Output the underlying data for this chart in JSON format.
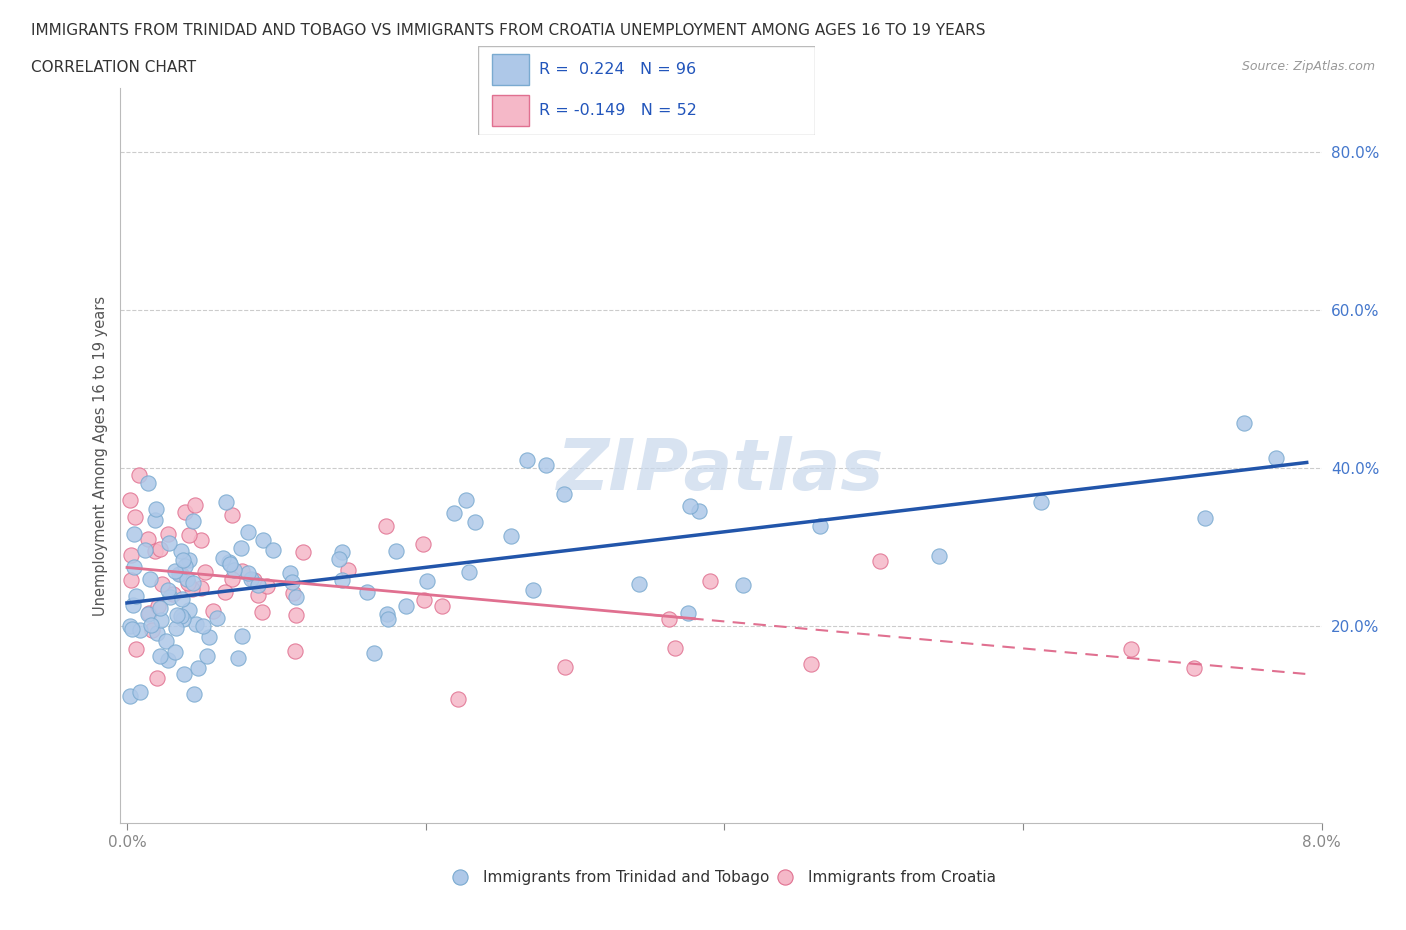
{
  "title_line1": "IMMIGRANTS FROM TRINIDAD AND TOBAGO VS IMMIGRANTS FROM CROATIA UNEMPLOYMENT AMONG AGES 16 TO 19 YEARS",
  "title_line2": "CORRELATION CHART",
  "source_text": "Source: ZipAtlas.com",
  "ylabel": "Unemployment Among Ages 16 to 19 years",
  "xlim_low": 0.0,
  "xlim_high": 0.08,
  "ylim_low": -0.05,
  "ylim_high": 0.88,
  "series1_color": "#aec8e8",
  "series1_edge": "#7aaad0",
  "series2_color": "#f5b8c8",
  "series2_edge": "#e07090",
  "trendline1_color": "#2255aa",
  "trendline2_color": "#e07090",
  "R1": 0.224,
  "N1": 96,
  "R2": -0.149,
  "N2": 52,
  "legend_label1": "Immigrants from Trinidad and Tobago",
  "legend_label2": "Immigrants from Croatia",
  "watermark": "ZIPatlas",
  "ytick_positions": [
    0.2,
    0.4,
    0.6,
    0.8
  ],
  "ytick_labels": [
    "20.0%",
    "40.0%",
    "60.0%",
    "80.0%"
  ],
  "xtick_positions": [
    0.0,
    0.02,
    0.04,
    0.06,
    0.08
  ],
  "xtick_labels": [
    "0.0%",
    "",
    "",
    "",
    "8.0%"
  ]
}
